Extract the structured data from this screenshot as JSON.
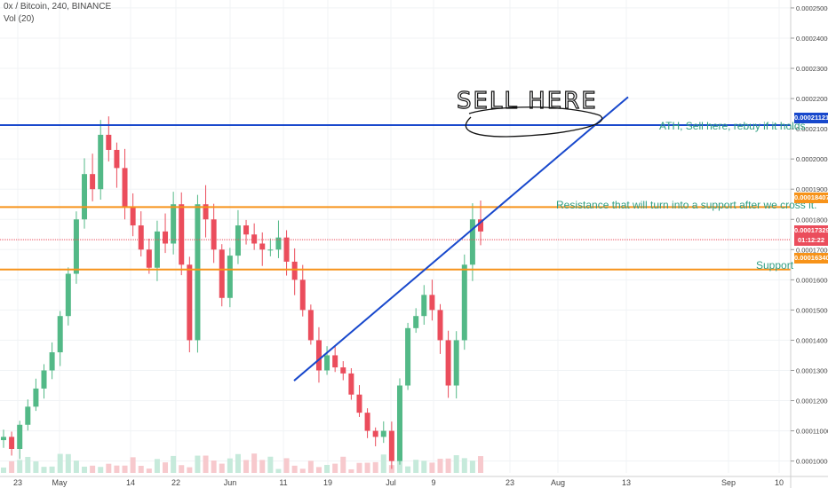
{
  "header": {
    "title": "0x / Bitcoin, 240, BINANCE",
    "volume_label": "Vol (20)"
  },
  "annotations": {
    "sell_here": "SELL HERE",
    "ath_note": "ATH, Sell here, rebuy if it holds",
    "resistance_note": "Resistance that will turn into a support after we cross it.",
    "support_note": "Support"
  },
  "price_tags": {
    "ath": "0.00021121",
    "resistance": "0.00018407",
    "current": "0.00017329",
    "countdown": "01:12:22",
    "support": "0.00016340"
  },
  "colors": {
    "up": "#53b987",
    "down": "#eb4d5c",
    "ath_line": "#1848cc",
    "level_line": "#f7931a",
    "trend_line": "#1848cc",
    "annotation_text": "#2f9e82"
  },
  "chart_data": {
    "type": "candlestick",
    "title": "0x / Bitcoin, 240, BINANCE",
    "y_range": [
      9.46e-05,
      0.00025145
    ],
    "y_ticks": [
      "0.00010000",
      "0.00011000",
      "0.00012000",
      "0.00013000",
      "0.00014000",
      "0.00015000",
      "0.00016000",
      "0.00017000",
      "0.00018000",
      "0.00019000",
      "0.00020000",
      "0.00021000",
      "0.00022000",
      "0.00023000",
      "0.00024000",
      "0.00025000"
    ],
    "x_ticks": [
      "23",
      "May",
      "14",
      "22",
      "Jun",
      "11",
      "19",
      "Jul",
      "9",
      "23",
      "Aug",
      "13",
      "Sep",
      "10"
    ],
    "series_close": [
      0.000108,
      0.000104,
      0.000112,
      0.000118,
      0.000124,
      0.00013,
      0.000136,
      0.000148,
      0.000162,
      0.00018,
      0.000195,
      0.00019,
      0.000208,
      0.000203,
      0.000197,
      0.000184,
      0.000178,
      0.00017,
      0.000164,
      0.000176,
      0.000172,
      0.000185,
      0.000165,
      0.00014,
      0.000185,
      0.00018,
      0.00017,
      0.000154,
      0.000168,
      0.000178,
      0.000175,
      0.000172,
      0.00017,
      0.00017,
      0.000174,
      0.000166,
      0.00016,
      0.00015,
      0.00014,
      0.00013,
      0.000135,
      0.000131,
      0.000129,
      0.000122,
      0.000116,
      0.00011,
      0.000108,
      0.00011,
      0.0001,
      0.000125,
      0.000144,
      0.000148,
      0.000155,
      0.00015,
      0.00014,
      0.000125,
      0.00014,
      0.000165,
      0.00018,
      0.000176
    ],
    "levels": [
      {
        "label": "ATH, Sell here, rebuy if it holds",
        "price": 0.00021121
      },
      {
        "label": "Resistance that will turn into a support after we cross it.",
        "price": 0.00018407
      },
      {
        "label": "Support",
        "price": 0.0001634
      }
    ],
    "current_price": 0.00017329,
    "trendline": {
      "from": [
        "Jun 13",
        0.0001266
      ],
      "to": [
        "Aug 10",
        0.0002205
      ]
    },
    "grid": true,
    "volume_series": "Vol (20)"
  }
}
